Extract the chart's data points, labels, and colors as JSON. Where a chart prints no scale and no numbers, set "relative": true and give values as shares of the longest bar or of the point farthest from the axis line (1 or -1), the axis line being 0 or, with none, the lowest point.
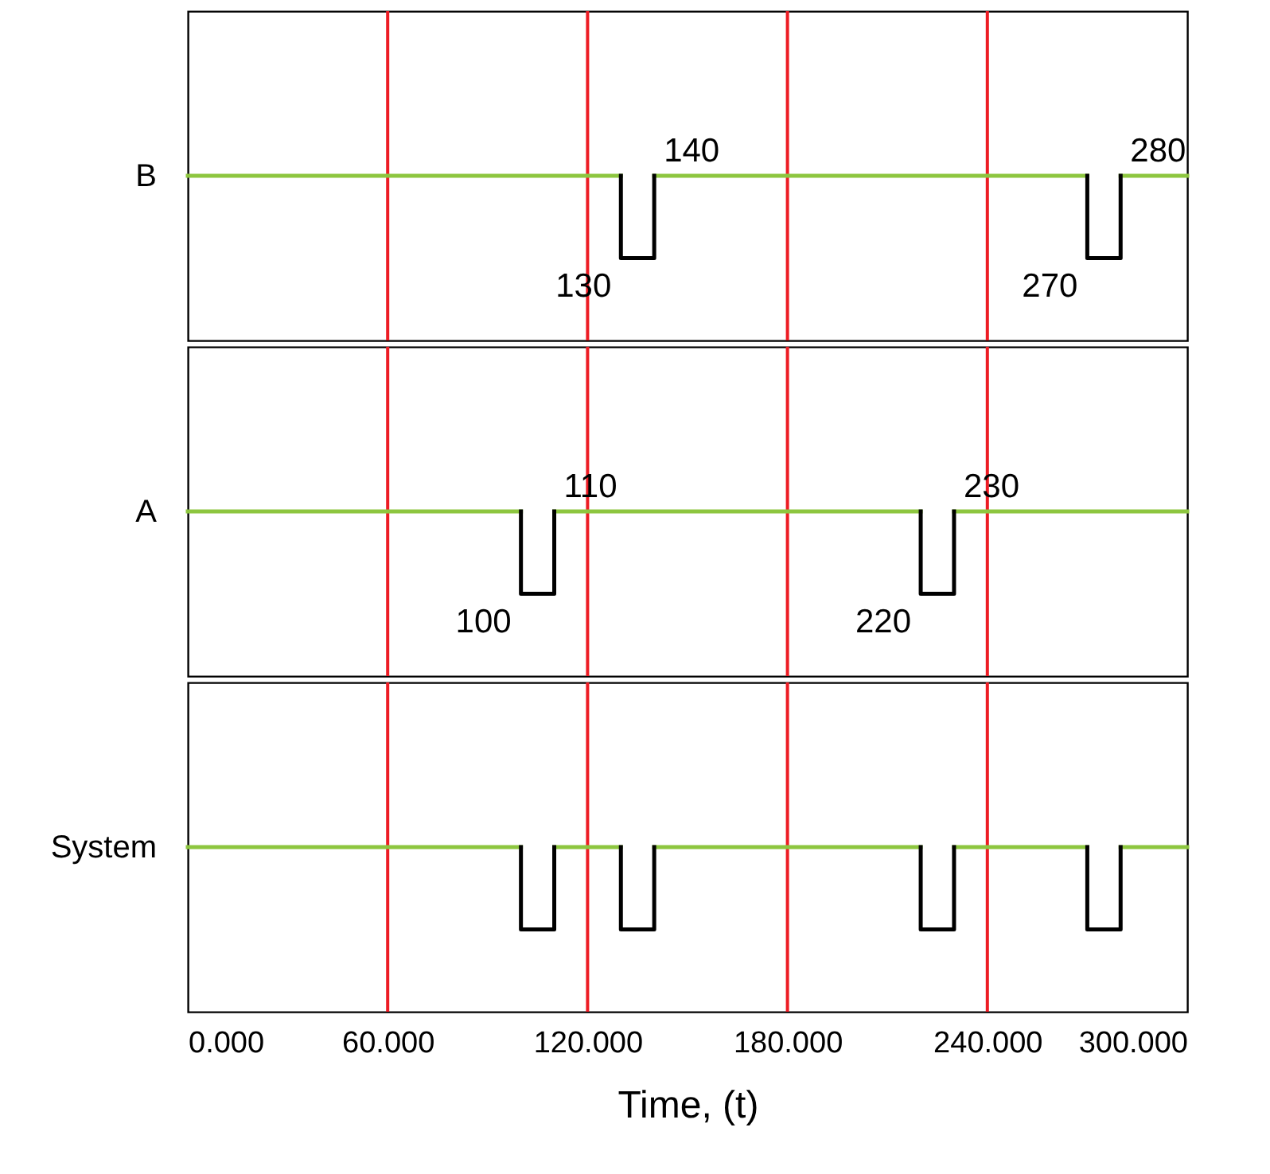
{
  "chart_data": [
    {
      "type": "line",
      "ylabel": "B",
      "relative": true,
      "xlim": [
        0,
        300
      ],
      "grid": false,
      "series": [
        {
          "color": "#8dc63f",
          "x": [
            0,
            130
          ],
          "values": [
            1,
            1
          ]
        },
        {
          "color": "#8dc63f",
          "x": [
            140,
            270
          ],
          "values": [
            1,
            1
          ]
        },
        {
          "color": "#8dc63f",
          "x": [
            280,
            300
          ],
          "values": [
            1,
            1
          ]
        },
        {
          "color": "#000000",
          "x": [
            130,
            130,
            140,
            140
          ],
          "values": [
            1,
            0.5,
            0.5,
            1
          ]
        },
        {
          "color": "#000000",
          "x": [
            270,
            270,
            280,
            280
          ],
          "values": [
            1,
            0.5,
            0.5,
            1
          ]
        }
      ],
      "ref_lines": [
        {
          "axis": "x",
          "value": 60,
          "color": "#ed1c24"
        },
        {
          "axis": "x",
          "value": 120,
          "color": "#ed1c24"
        },
        {
          "axis": "x",
          "value": 180,
          "color": "#ed1c24"
        },
        {
          "axis": "x",
          "value": 240,
          "color": "#ed1c24"
        }
      ],
      "annotations": [
        {
          "text": "130",
          "x": 130,
          "y": 0.5
        },
        {
          "text": "140",
          "x": 140,
          "y": 1
        },
        {
          "text": "270",
          "x": 270,
          "y": 0.5
        },
        {
          "text": "280",
          "x": 280,
          "y": 1
        }
      ]
    },
    {
      "type": "line",
      "ylabel": "A",
      "relative": true,
      "xlim": [
        0,
        300
      ],
      "grid": false,
      "series": [
        {
          "color": "#8dc63f",
          "x": [
            0,
            100
          ],
          "values": [
            1,
            1
          ]
        },
        {
          "color": "#8dc63f",
          "x": [
            110,
            220
          ],
          "values": [
            1,
            1
          ]
        },
        {
          "color": "#8dc63f",
          "x": [
            230,
            300
          ],
          "values": [
            1,
            1
          ]
        },
        {
          "color": "#000000",
          "x": [
            100,
            100,
            110,
            110
          ],
          "values": [
            1,
            0.5,
            0.5,
            1
          ]
        },
        {
          "color": "#000000",
          "x": [
            220,
            220,
            230,
            230
          ],
          "values": [
            1,
            0.5,
            0.5,
            1
          ]
        }
      ],
      "ref_lines": [
        {
          "axis": "x",
          "value": 60,
          "color": "#ed1c24"
        },
        {
          "axis": "x",
          "value": 120,
          "color": "#ed1c24"
        },
        {
          "axis": "x",
          "value": 180,
          "color": "#ed1c24"
        },
        {
          "axis": "x",
          "value": 240,
          "color": "#ed1c24"
        }
      ],
      "annotations": [
        {
          "text": "100",
          "x": 100,
          "y": 0.5
        },
        {
          "text": "110",
          "x": 110,
          "y": 1
        },
        {
          "text": "220",
          "x": 220,
          "y": 0.5
        },
        {
          "text": "230",
          "x": 230,
          "y": 1
        }
      ]
    },
    {
      "type": "line",
      "ylabel": "System",
      "xlabel": "Time, (t)",
      "relative": true,
      "xlim": [
        0,
        300
      ],
      "xticks": [
        {
          "value": 0,
          "label": "0.000"
        },
        {
          "value": 60,
          "label": "60.000"
        },
        {
          "value": 120,
          "label": "120.000"
        },
        {
          "value": 180,
          "label": "180.000"
        },
        {
          "value": 240,
          "label": "240.000"
        },
        {
          "value": 300,
          "label": "300.000"
        }
      ],
      "grid": false,
      "series": [
        {
          "color": "#8dc63f",
          "x": [
            0,
            100
          ],
          "values": [
            1,
            1
          ]
        },
        {
          "color": "#8dc63f",
          "x": [
            110,
            130
          ],
          "values": [
            1,
            1
          ]
        },
        {
          "color": "#8dc63f",
          "x": [
            140,
            220
          ],
          "values": [
            1,
            1
          ]
        },
        {
          "color": "#8dc63f",
          "x": [
            230,
            270
          ],
          "values": [
            1,
            1
          ]
        },
        {
          "color": "#8dc63f",
          "x": [
            280,
            300
          ],
          "values": [
            1,
            1
          ]
        },
        {
          "color": "#000000",
          "x": [
            100,
            100,
            110,
            110
          ],
          "values": [
            1,
            0.5,
            0.5,
            1
          ]
        },
        {
          "color": "#000000",
          "x": [
            130,
            130,
            140,
            140
          ],
          "values": [
            1,
            0.5,
            0.5,
            1
          ]
        },
        {
          "color": "#000000",
          "x": [
            220,
            220,
            230,
            230
          ],
          "values": [
            1,
            0.5,
            0.5,
            1
          ]
        },
        {
          "color": "#000000",
          "x": [
            270,
            270,
            280,
            280
          ],
          "values": [
            1,
            0.5,
            0.5,
            1
          ]
        }
      ],
      "ref_lines": [
        {
          "axis": "x",
          "value": 60,
          "color": "#ed1c24"
        },
        {
          "axis": "x",
          "value": 120,
          "color": "#ed1c24"
        },
        {
          "axis": "x",
          "value": 180,
          "color": "#ed1c24"
        },
        {
          "axis": "x",
          "value": 240,
          "color": "#ed1c24"
        }
      ]
    }
  ]
}
